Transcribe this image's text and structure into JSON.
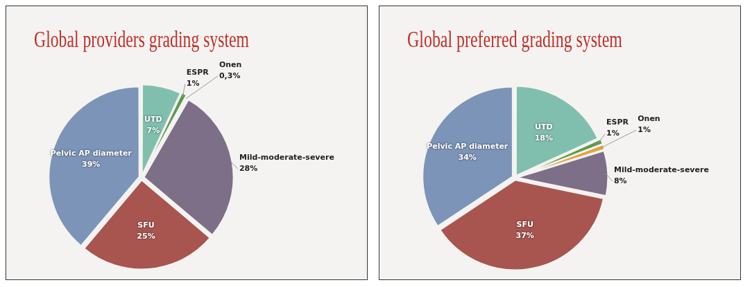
{
  "chart_data": [
    {
      "type": "pie",
      "title": "Global providers grading system",
      "categories": [
        "UTD",
        "ESPR",
        "Onen",
        "Mild-moderate-severe",
        "SFU",
        "Pelvic AP diameter"
      ],
      "values": [
        7,
        1,
        0.3,
        28,
        25,
        39
      ],
      "value_labels": [
        "7%",
        "1%",
        "0,3%",
        "28%",
        "25%",
        "39%"
      ],
      "colors": [
        "#80bfae",
        "#5e9a4a",
        "#e6a23a",
        "#7d6f88",
        "#a8554f",
        "#7c94b8"
      ]
    },
    {
      "type": "pie",
      "title": "Global preferred grading system",
      "categories": [
        "UTD",
        "ESPR",
        "Onen",
        "Mild-moderate-severe",
        "SFU",
        "Pelvic AP diameter"
      ],
      "values": [
        18,
        1,
        1,
        8,
        37,
        34
      ],
      "value_labels": [
        "18%",
        "1%",
        "1%",
        "8%",
        "37%",
        "34%"
      ],
      "colors": [
        "#80bfae",
        "#5e9a4a",
        "#e6a23a",
        "#7d6f88",
        "#a8554f",
        "#7c94b8"
      ]
    }
  ]
}
